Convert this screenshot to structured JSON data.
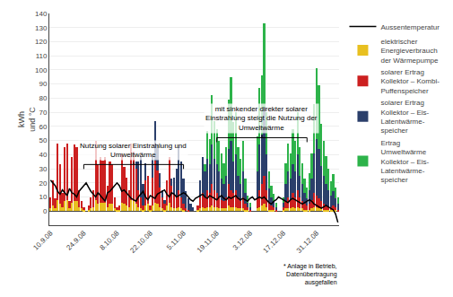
{
  "chart_data": {
    "type": "bar",
    "stacked": true,
    "ylabel": "kWh\nund °C",
    "grid": true,
    "legend": "right",
    "ylim": [
      -10,
      140
    ],
    "yticks": [
      0,
      10,
      20,
      30,
      40,
      50,
      60,
      70,
      80,
      90,
      100,
      110,
      120,
      130,
      140
    ],
    "categories": [
      "10.9.08",
      null,
      null,
      null,
      null,
      null,
      null,
      null,
      null,
      null,
      null,
      null,
      null,
      null,
      "24.9.08",
      null,
      null,
      null,
      null,
      null,
      null,
      null,
      null,
      null,
      null,
      null,
      null,
      null,
      "8.10.08",
      null,
      null,
      null,
      null,
      null,
      null,
      null,
      null,
      null,
      null,
      null,
      null,
      null,
      "22.10.08",
      null,
      null,
      null,
      null,
      null,
      null,
      null,
      null,
      null,
      null,
      null,
      null,
      null,
      "5.11.08",
      null,
      null,
      null,
      null,
      null,
      null,
      null,
      null,
      null,
      null,
      null,
      null,
      null,
      "19.11.08",
      null,
      null,
      null,
      null,
      null,
      null,
      null,
      null,
      null,
      null,
      null,
      null,
      null,
      "3.12.08",
      null,
      null,
      null,
      null,
      null,
      null,
      null,
      null,
      null,
      null,
      null,
      null,
      null,
      "17.12.08",
      null,
      null,
      null,
      null,
      null,
      null,
      null,
      null,
      null,
      null,
      null,
      null,
      null,
      "31.12.08",
      null,
      null,
      null,
      null,
      null,
      null,
      null,
      null,
      null
    ],
    "series": [
      {
        "name": "Ertrag\nUmweltwärme\nKollektor – Eis-\nLatentwärme-\nspeicher",
        "color": "#2db34a",
        "values": [
          0,
          0,
          0,
          0,
          0,
          0,
          0,
          0,
          0,
          0,
          0,
          0,
          0,
          0,
          0,
          0,
          0,
          0,
          0,
          0,
          0,
          0,
          0,
          0,
          0,
          0,
          0,
          0,
          0,
          0,
          0,
          0,
          0,
          0,
          0,
          0,
          0,
          0,
          0,
          0,
          0,
          0,
          0,
          0,
          0,
          0,
          0,
          0,
          0,
          0,
          0,
          0,
          0,
          0,
          0,
          0,
          0,
          0,
          0,
          0,
          0,
          0,
          0,
          0,
          0,
          5,
          20,
          18,
          35,
          27,
          25,
          22,
          18,
          15,
          20,
          35,
          45,
          28,
          30,
          20,
          18,
          22,
          10,
          5,
          3,
          0,
          0,
          25,
          40,
          42,
          60,
          30,
          12,
          8,
          5,
          3,
          0,
          0,
          4,
          15,
          20,
          18,
          25,
          22,
          30,
          20,
          15,
          10,
          8,
          12,
          18,
          35,
          50,
          45,
          30,
          25,
          20,
          15,
          10,
          12,
          8,
          5
        ]
      },
      {
        "name": "solarer Ertrag\nKollektor – Eis-\nLatentwärme-\nspeicher",
        "color": "#2b3f6b",
        "values": [
          0,
          0,
          0,
          0,
          0,
          0,
          0,
          0,
          0,
          0,
          0,
          0,
          0,
          0,
          0,
          0,
          0,
          0,
          0,
          0,
          0,
          0,
          0,
          0,
          0,
          0,
          0,
          0,
          0,
          0,
          0,
          0,
          0,
          0,
          0,
          0,
          5,
          20,
          28,
          15,
          12,
          0,
          0,
          15,
          28,
          18,
          10,
          5,
          3,
          0,
          0,
          5,
          12,
          20,
          30,
          25,
          18,
          12,
          8,
          5,
          3,
          0,
          0,
          12,
          25,
          18,
          22,
          20,
          28,
          22,
          20,
          18,
          15,
          12,
          15,
          25,
          35,
          22,
          25,
          15,
          12,
          18,
          8,
          3,
          2,
          0,
          0,
          18,
          32,
          35,
          48,
          25,
          10,
          6,
          4,
          2,
          0,
          0,
          3,
          12,
          18,
          15,
          20,
          18,
          25,
          15,
          12,
          8,
          5,
          10,
          15,
          28,
          40,
          35,
          25,
          20,
          15,
          12,
          8,
          10,
          6,
          4
        ]
      },
      {
        "name": "solarer Ertrag\nKollektor – Kombi-\nPuffenspeicher",
        "color": "#cc2020",
        "values": [
          8,
          18,
          7,
          40,
          28,
          10,
          38,
          40,
          5,
          32,
          40,
          38,
          12,
          5,
          2,
          0,
          3,
          8,
          12,
          42,
          28,
          32,
          30,
          32,
          15,
          30,
          28,
          8,
          2,
          3,
          35,
          26,
          20,
          12,
          40,
          35,
          25,
          12,
          8,
          3,
          18,
          20,
          3,
          20,
          30,
          24,
          14,
          8,
          4,
          18,
          32,
          15,
          10,
          8,
          12,
          8,
          4,
          2,
          1,
          0,
          0,
          0,
          3,
          8,
          10,
          8,
          12,
          10,
          15,
          12,
          10,
          8,
          6,
          5,
          8,
          15,
          12,
          10,
          12,
          8,
          5,
          8,
          4,
          2,
          1,
          0,
          0,
          8,
          12,
          15,
          20,
          12,
          5,
          3,
          2,
          1,
          0,
          0,
          2,
          5,
          8,
          6,
          10,
          8,
          12,
          8,
          5,
          4,
          3,
          4,
          6,
          10,
          8,
          7,
          5,
          4,
          3,
          2,
          2,
          3,
          2,
          1
        ]
      },
      {
        "name": "elektrischer\nEnergieverbrauch\nder Wärmepumpe",
        "color": "#e8c020",
        "values": [
          2,
          4,
          2,
          8,
          5,
          3,
          7,
          8,
          2,
          6,
          7,
          7,
          3,
          2,
          1,
          0,
          1,
          2,
          3,
          8,
          5,
          6,
          6,
          6,
          3,
          5,
          5,
          2,
          1,
          1,
          6,
          5,
          4,
          3,
          8,
          7,
          5,
          3,
          2,
          1,
          4,
          5,
          1,
          4,
          6,
          5,
          3,
          2,
          1,
          4,
          6,
          3,
          2,
          2,
          3,
          2,
          1,
          0,
          0,
          0,
          0,
          0,
          1,
          2,
          3,
          2,
          3,
          3,
          4,
          3,
          3,
          2,
          2,
          2,
          2,
          4,
          3,
          3,
          3,
          2,
          2,
          2,
          1,
          1,
          0,
          0,
          0,
          2,
          3,
          4,
          5,
          3,
          1,
          1,
          1,
          0,
          0,
          0,
          1,
          2,
          2,
          2,
          3,
          2,
          3,
          2,
          2,
          1,
          1,
          1,
          2,
          3,
          3,
          2,
          2,
          1,
          1,
          1,
          1,
          1,
          1,
          0
        ]
      },
      {
        "name": "Aussentemperatur",
        "type": "line",
        "color": "#000000",
        "values": [
          22,
          20,
          18,
          14,
          12,
          15,
          13,
          11,
          16,
          13,
          12,
          10,
          14,
          16,
          18,
          20,
          17,
          14,
          12,
          10,
          13,
          11,
          9,
          7,
          13,
          14,
          16,
          18,
          20,
          18,
          14,
          15,
          13,
          11,
          9,
          8,
          7,
          10,
          12,
          14,
          10,
          8,
          11,
          10,
          9,
          12,
          13,
          14,
          15,
          12,
          10,
          13,
          12,
          10,
          11,
          12,
          13,
          12,
          10,
          8,
          7,
          9,
          10,
          11,
          12,
          10,
          9,
          11,
          10,
          9,
          8,
          10,
          11,
          9,
          8,
          10,
          9,
          10,
          11,
          9,
          8,
          9,
          8,
          7,
          9,
          10,
          8,
          9,
          10,
          9,
          10,
          8,
          6,
          5,
          7,
          8,
          10,
          9,
          8,
          7,
          6,
          8,
          9,
          8,
          7,
          6,
          5,
          6,
          7,
          8,
          7,
          5,
          4,
          3,
          2,
          3,
          4,
          3,
          2,
          1,
          -2,
          -8
        ]
      }
    ],
    "annotations": [
      {
        "text": "Nutzung solarer Einstrahlung und\nUmweltwärme",
        "x": [
          14,
          56
        ],
        "y": 33
      },
      {
        "text": "mit sinkender direkter solarer\nEinstrahlung steigt die Nutzung der\nUmweltwärme",
        "x": [
          70,
          108
        ],
        "y": 52
      }
    ],
    "footnote": "* Anlage in Betrieb,\nDatenübertragung\nausgefallen"
  }
}
